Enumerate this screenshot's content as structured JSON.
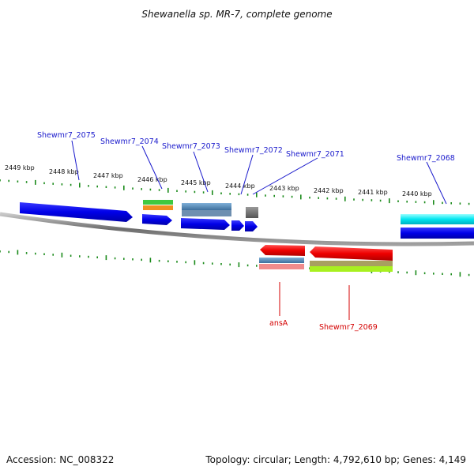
{
  "title": "Shewanella sp. MR-7, complete genome",
  "footer": {
    "accession": "Accession: NC_008322",
    "summary": "Topology: circular; Length: 4,792,610 bp; Genes: 4,149"
  },
  "ticks": [
    "2449 kbp",
    "2448 kbp",
    "2447 kbp",
    "2446 kbp",
    "2445 kbp",
    "2444 kbp",
    "2443 kbp",
    "2442 kbp",
    "2441 kbp",
    "2440 kbp"
  ],
  "genes_forward": [
    "Shewmr7_2075",
    "Shewmr7_2074",
    "Shewmr7_2073",
    "Shewmr7_2072",
    "Shewmr7_2071",
    "Shewmr7_2068"
  ],
  "genes_reverse": [
    "ansA",
    "Shewmr7_2069"
  ],
  "colors": {
    "forward_label": "#1a1acc",
    "reverse_label": "#d40000",
    "tick": "#1a8a1a",
    "backbone": "#808080",
    "cds_blue": "#0000e0",
    "cds_red": "#ee0000"
  }
}
